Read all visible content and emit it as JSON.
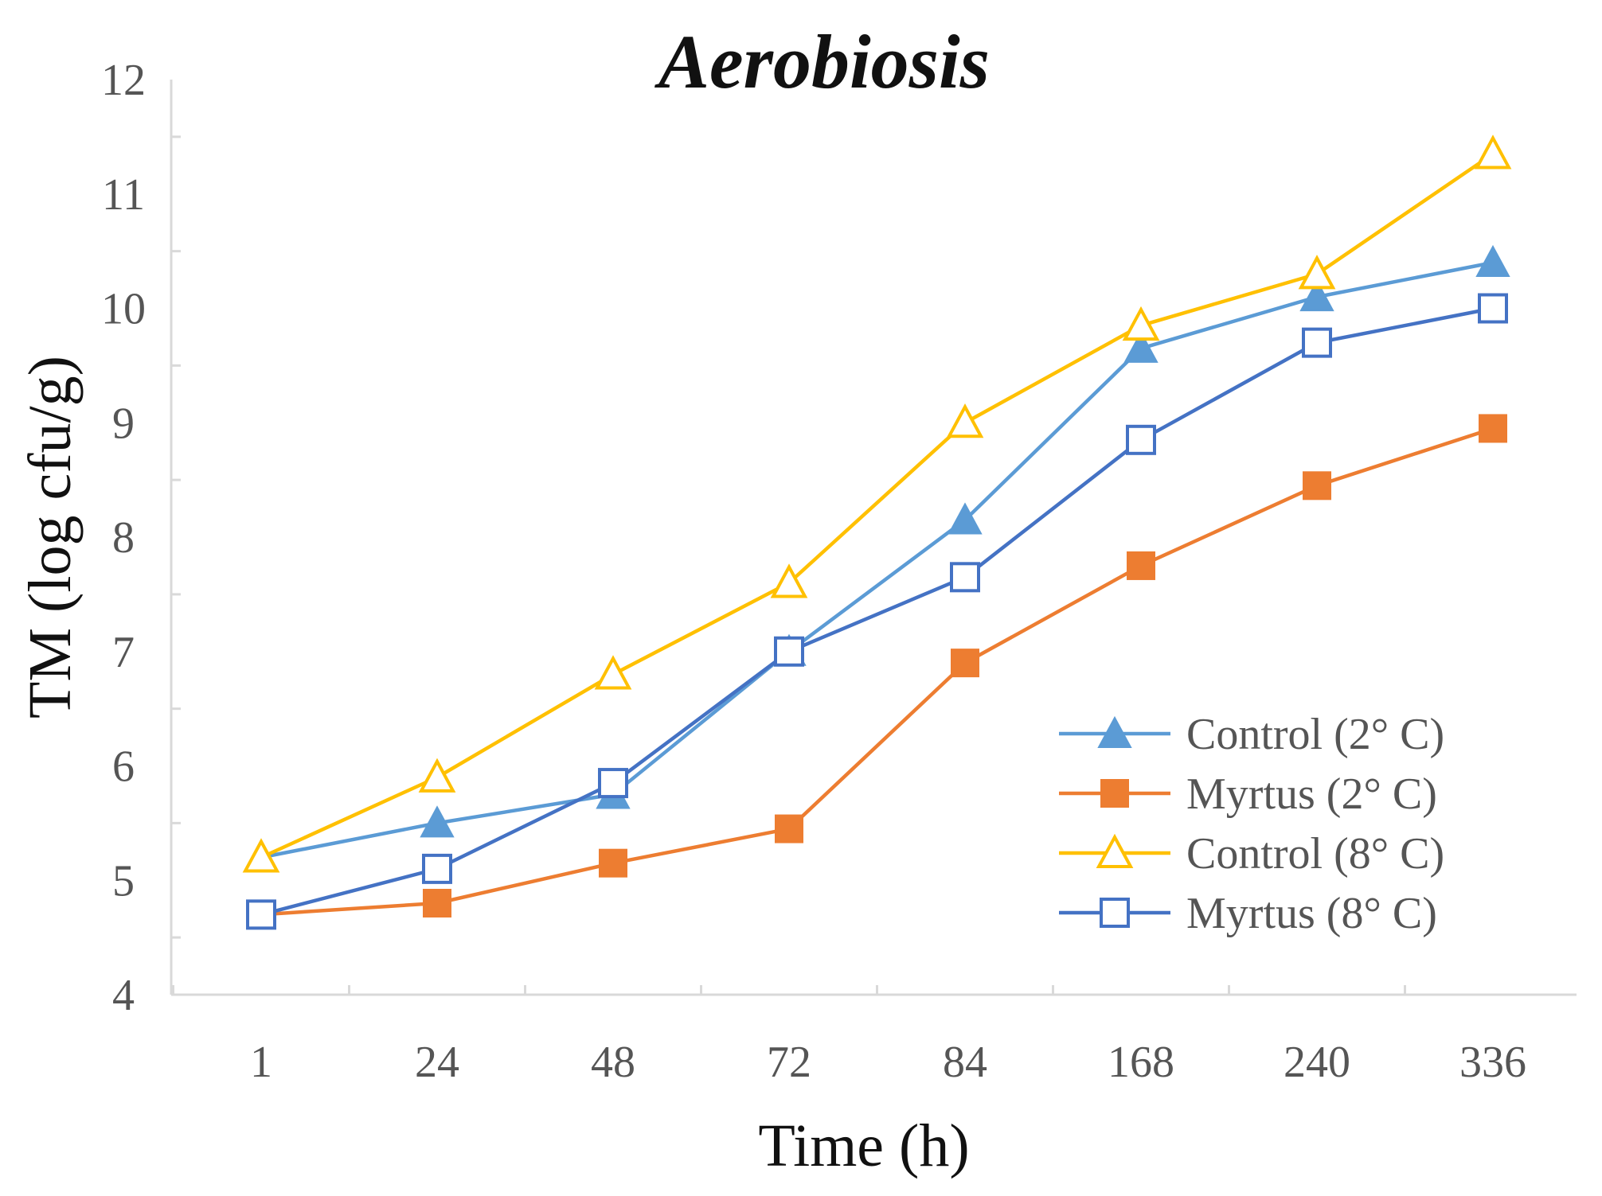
{
  "chart_data": {
    "type": "line",
    "title": "Aerobiosis",
    "xlabel": "Time (h)",
    "ylabel": "TM (log cfu/g)",
    "categories": [
      "1",
      "24",
      "48",
      "72",
      "84",
      "168",
      "240",
      "336"
    ],
    "ylim": [
      4,
      12
    ],
    "yticks": [
      4,
      5,
      6,
      7,
      8,
      9,
      10,
      11,
      12
    ],
    "grid": false,
    "legend_position": "bottom-right",
    "series": [
      {
        "name": "Control (2° C)",
        "color": "#5B9BD5",
        "marker": "triangle-filled",
        "values": [
          5.2,
          5.5,
          5.75,
          7.0,
          8.15,
          9.65,
          10.1,
          10.4
        ]
      },
      {
        "name": "Myrtus (2° C)",
        "color": "#ED7D31",
        "marker": "square-filled",
        "values": [
          4.7,
          4.8,
          5.15,
          5.45,
          6.9,
          7.75,
          8.45,
          8.95
        ]
      },
      {
        "name": "Control (8° C)",
        "color": "#FFC000",
        "marker": "triangle-open",
        "values": [
          5.2,
          5.9,
          6.8,
          7.6,
          9.0,
          9.85,
          10.3,
          11.35
        ]
      },
      {
        "name": "Myrtus (8° C)",
        "color": "#4472C4",
        "marker": "square-open",
        "values": [
          4.7,
          5.1,
          5.85,
          7.0,
          7.65,
          8.85,
          9.7,
          10.0
        ]
      }
    ]
  }
}
